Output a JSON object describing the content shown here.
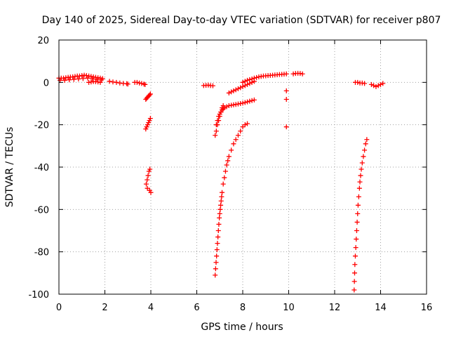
{
  "chart_data": {
    "type": "scatter",
    "title": "Day 140 of 2025, Sidereal Day-to-day VTEC variation (SDTVAR) for receiver p807",
    "xlabel": "GPS time / hours",
    "ylabel": "SDTVAR / TECUs",
    "xlim": [
      0,
      16
    ],
    "ylim": [
      -100,
      20
    ],
    "xticks": [
      0,
      2,
      4,
      6,
      8,
      10,
      12,
      14,
      16
    ],
    "yticks": [
      -100,
      -80,
      -60,
      -40,
      -20,
      0,
      20
    ],
    "xtick_labels": [
      "0",
      "2",
      "4",
      "6",
      "8",
      "10",
      "12",
      "14",
      "16"
    ],
    "ytick_labels": [
      "-100",
      "-80",
      "-60",
      "-40",
      "-20",
      "0",
      "20"
    ],
    "grid": true,
    "marker": "plus",
    "color": "#ff0000",
    "series": [
      {
        "name": "SDTVAR",
        "x": [
          0.0,
          0.1,
          0.2,
          0.3,
          0.4,
          0.5,
          0.6,
          0.7,
          0.8,
          0.9,
          1.0,
          1.1,
          1.2,
          1.3,
          1.4,
          1.5,
          1.6,
          1.7,
          1.8,
          1.9,
          0.05,
          0.25,
          0.45,
          0.65,
          0.85,
          1.05,
          1.25,
          1.45,
          1.65,
          1.85,
          1.3,
          1.4,
          1.5,
          1.6,
          1.7,
          1.8,
          2.2,
          2.35,
          2.5,
          2.65,
          2.8,
          2.95,
          3.0,
          3.3,
          3.4,
          3.5,
          3.6,
          3.7,
          3.75,
          3.78,
          3.82,
          3.86,
          3.9,
          3.94,
          3.98,
          3.78,
          3.82,
          3.86,
          3.9,
          3.94,
          3.98,
          3.8,
          3.84,
          3.88,
          3.92,
          3.96,
          4.0,
          3.85,
          3.95,
          6.3,
          6.4,
          6.5,
          6.6,
          6.7,
          6.8,
          6.85,
          6.9,
          6.95,
          7.0,
          7.05,
          7.1,
          7.15,
          6.85,
          6.9,
          6.95,
          7.0,
          7.05,
          7.1,
          7.15,
          7.2,
          7.3,
          7.4,
          7.5,
          7.6,
          7.7,
          7.8,
          7.9,
          8.0,
          8.1,
          8.2,
          8.3,
          8.4,
          8.5,
          6.8,
          6.82,
          6.84,
          6.86,
          6.88,
          6.9,
          6.92,
          6.94,
          6.96,
          6.98,
          7.0,
          7.02,
          7.04,
          7.06,
          7.08,
          7.1,
          7.15,
          7.2,
          7.25,
          7.3,
          7.35,
          7.4,
          7.5,
          7.6,
          7.7,
          7.8,
          7.9,
          8.0,
          8.1,
          8.2,
          7.4,
          7.5,
          7.6,
          7.7,
          7.8,
          7.9,
          8.0,
          8.1,
          8.2,
          8.3,
          8.4,
          8.5,
          8.0,
          8.1,
          8.2,
          8.3,
          8.4,
          8.5,
          8.6,
          8.7,
          8.8,
          8.9,
          9.0,
          9.1,
          9.2,
          9.3,
          9.4,
          9.5,
          9.6,
          9.7,
          9.8,
          9.9,
          10.2,
          10.3,
          10.4,
          10.5,
          10.6,
          9.9,
          9.9,
          9.9,
          12.85,
          12.86,
          12.87,
          12.88,
          12.9,
          12.92,
          12.94,
          12.96,
          12.98,
          13.0,
          13.02,
          13.05,
          13.08,
          13.1,
          13.13,
          13.16,
          13.2,
          13.25,
          13.3,
          13.35,
          13.4,
          12.9,
          13.0,
          13.1,
          13.2,
          13.3,
          13.6,
          13.7,
          13.8,
          13.9,
          14.0,
          14.1
        ],
        "y": [
          2,
          2,
          2,
          2.2,
          2.4,
          2.5,
          2.6,
          2.8,
          3,
          3,
          3.2,
          3.4,
          3.2,
          3,
          2.8,
          2.6,
          2.4,
          2.2,
          2,
          1.8,
          1,
          1,
          1.2,
          1.4,
          1.6,
          1.8,
          2,
          1.8,
          1.4,
          1.2,
          0,
          0.2,
          0.4,
          0.3,
          0.2,
          0,
          0.5,
          0.2,
          0,
          -0.3,
          -0.5,
          -0.6,
          -0.8,
          0,
          0,
          -0.3,
          -0.5,
          -0.8,
          -1,
          -8,
          -7.5,
          -7,
          -6.5,
          -6,
          -5.5,
          -22,
          -21,
          -20,
          -19,
          -18,
          -17,
          -48,
          -46,
          -44,
          -42,
          -41,
          -52,
          -50,
          -51,
          -1.5,
          -1.4,
          -1.3,
          -1.5,
          -1.6,
          -25,
          -23,
          -20,
          -18,
          -16,
          -14,
          -12,
          -11,
          -20,
          -18,
          -16,
          -15,
          -14,
          -13,
          -12.5,
          -12,
          -11.5,
          -11,
          -10.8,
          -10.6,
          -10.4,
          -10.2,
          -10,
          -9.8,
          -9.5,
          -9.2,
          -8.9,
          -8.6,
          -8.3,
          -91,
          -88,
          -85,
          -82,
          -79,
          -76,
          -73,
          -70,
          -67,
          -64,
          -62,
          -60,
          -58,
          -56,
          -54,
          -52,
          -48,
          -45,
          -42,
          -39,
          -37,
          -35,
          -32,
          -29,
          -27,
          -25,
          -23,
          -21,
          -20,
          -19.5,
          -5,
          -4.5,
          -4,
          -3.5,
          -3,
          -2.5,
          -2,
          -1.5,
          -1,
          -0.5,
          0,
          0.5,
          0,
          0.5,
          1,
          1.3,
          1.6,
          2,
          2.3,
          2.6,
          2.8,
          3,
          3.1,
          3.2,
          3.3,
          3.4,
          3.5,
          3.6,
          3.7,
          3.8,
          3.9,
          4,
          4,
          4.2,
          4.3,
          4.2,
          4,
          -4,
          -8,
          -21,
          -98,
          -94,
          -90,
          -86,
          -82,
          -78,
          -74,
          -70,
          -66,
          -62,
          -58,
          -54,
          -50,
          -47,
          -44,
          -41,
          -38,
          -35,
          -32,
          -29,
          -27,
          0,
          0,
          -0.3,
          -0.3,
          -0.5,
          -1,
          -1.5,
          -2,
          -1.5,
          -1,
          -0.5
        ]
      }
    ]
  }
}
